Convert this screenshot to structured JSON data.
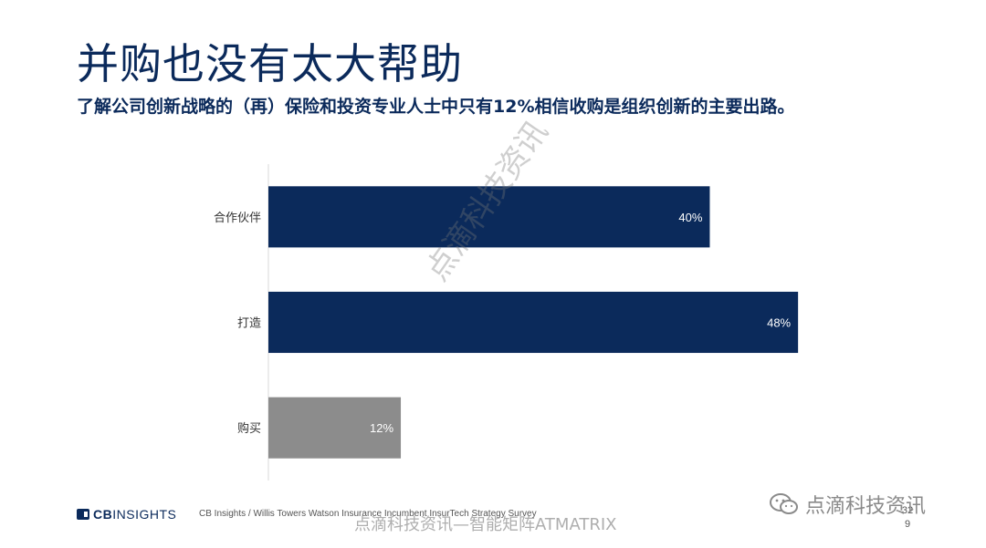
{
  "title": "并购也没有太大帮助",
  "subtitle": "了解公司创新战略的（再）保险和投资专业人士中只有12%相信收购是组织创新的主要出路。",
  "chart_data": {
    "type": "bar",
    "orientation": "horizontal",
    "categories": [
      "合作伙伴",
      "打造",
      "购买"
    ],
    "values": [
      40,
      48,
      12
    ],
    "data_labels": [
      "40%",
      "48%",
      "12%"
    ],
    "bar_colors": [
      "#0b2a5b",
      "#0b2a5b",
      "#8c8c8c"
    ],
    "xlim": [
      0,
      58
    ],
    "grid": false,
    "legend": "none"
  },
  "footer": {
    "logo_cb": "CB",
    "logo_insights": "INSIGHTS",
    "source": "CB Insights / Willis Towers Watson Insurance Incumbent InsurTech Strategy Survey",
    "page_number": "32\n9"
  },
  "watermarks": {
    "diagonal": "点滴科技资讯",
    "bottom": "点滴科技资讯—智能矩阵ATMATRIX",
    "wechat": "点滴科技资讯",
    "wechat_icon": "wechat-icon"
  }
}
